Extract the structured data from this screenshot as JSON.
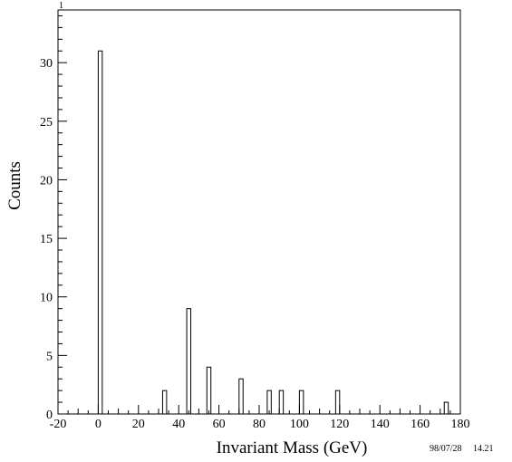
{
  "chart_data": {
    "type": "bar",
    "corner_label": "1",
    "xlabel": "Invariant Mass (GeV)",
    "ylabel": "Counts",
    "xlim": [
      -20,
      180
    ],
    "ylim": [
      0,
      34.5
    ],
    "x_ticks": [
      -20,
      0,
      20,
      40,
      60,
      80,
      100,
      120,
      140,
      160,
      180
    ],
    "y_ticks": [
      0,
      5,
      10,
      15,
      20,
      25,
      30
    ],
    "bin_width": 2,
    "bins": [
      {
        "x": 0,
        "value": 31
      },
      {
        "x": 32,
        "value": 2
      },
      {
        "x": 44,
        "value": 9
      },
      {
        "x": 54,
        "value": 4
      },
      {
        "x": 70,
        "value": 3
      },
      {
        "x": 84,
        "value": 2
      },
      {
        "x": 90,
        "value": 2
      },
      {
        "x": 100,
        "value": 2
      },
      {
        "x": 118,
        "value": 2
      },
      {
        "x": 172,
        "value": 1
      }
    ],
    "grid": false,
    "bar_fill": "#ffffff",
    "bar_stroke": "#000000"
  },
  "stamp": {
    "date": "98/07/28",
    "time": "14.21"
  }
}
